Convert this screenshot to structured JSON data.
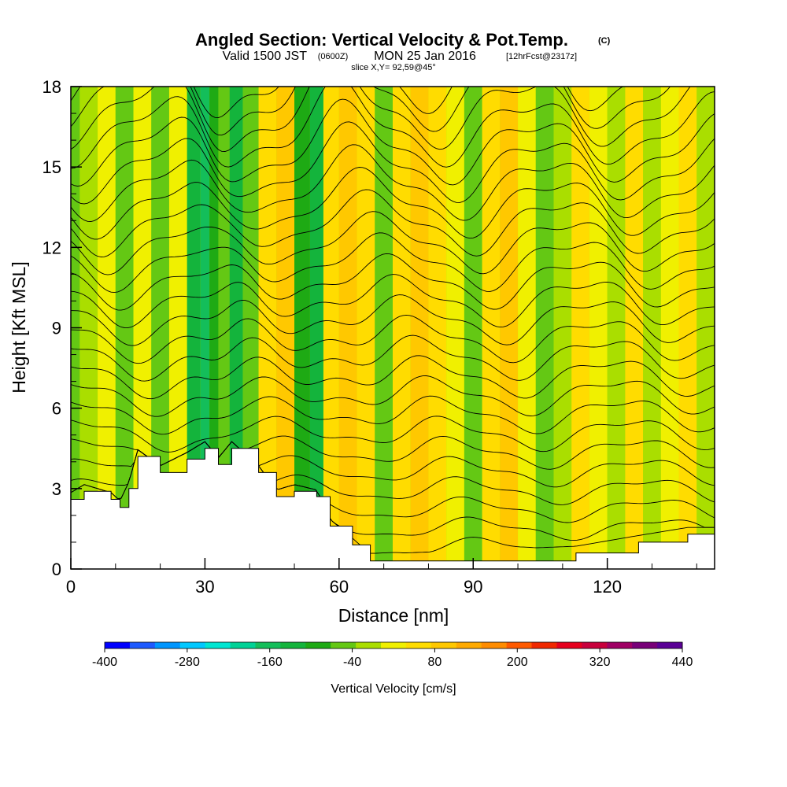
{
  "title": {
    "main": "Angled Section: Vertical Velocity & Pot.Temp.",
    "main_units": "(C)",
    "valid_prefix": "Valid 1500 JST",
    "valid_utc": "(0600Z)",
    "valid_date": "MON 25 Jan 2016",
    "forecast": "[12hrFcst@2317z]",
    "slice": "slice X,Y= 92,59@45°"
  },
  "colorbar": {
    "label": "Vertical Velocity [cm/s]",
    "colors": [
      "#0000ff",
      "#1e5aff",
      "#0096ff",
      "#00c8ff",
      "#00e6d2",
      "#00d296",
      "#14be5a",
      "#14b43c",
      "#1eaa14",
      "#64c814",
      "#aade00",
      "#f0f000",
      "#ffdc00",
      "#ffc800",
      "#ffaa00",
      "#ff8c00",
      "#ff5a00",
      "#f02800",
      "#e6001e",
      "#c8003c",
      "#a00064",
      "#780078",
      "#5a0096"
    ],
    "tick_labels": [
      "-400",
      "-280",
      "-160",
      "-40",
      "80",
      "200",
      "320",
      "440"
    ],
    "tick_values": [
      -400,
      -280,
      -160,
      -40,
      80,
      200,
      320,
      440
    ],
    "vmin": -400,
    "vmax": 440
  },
  "chart_data": {
    "type": "heatmap",
    "title": "Angled Section: Vertical Velocity & Pot.Temp.",
    "xlabel": "Distance [nm]",
    "ylabel": "Height [Kft MSL]",
    "xlim": [
      0,
      144
    ],
    "ylim": [
      0,
      18
    ],
    "x_ticks": [
      0,
      30,
      60,
      90,
      120
    ],
    "y_ticks": [
      0,
      3,
      6,
      9,
      12,
      15,
      18
    ],
    "field_fill": "Vertical Velocity [cm/s]",
    "field_contours": "Potential Temperature (C)",
    "columns": [
      {
        "x": 0,
        "w": -40
      },
      {
        "x": 4,
        "w": -20
      },
      {
        "x": 8,
        "w": 10
      },
      {
        "x": 12,
        "w": -40
      },
      {
        "x": 16,
        "w": 20
      },
      {
        "x": 20,
        "w": -60
      },
      {
        "x": 24,
        "w": 20
      },
      {
        "x": 28,
        "w": -140
      },
      {
        "x": 30,
        "w": -160
      },
      {
        "x": 32,
        "w": -100
      },
      {
        "x": 34,
        "w": -40
      },
      {
        "x": 37,
        "w": -140
      },
      {
        "x": 40,
        "w": -40
      },
      {
        "x": 44,
        "w": 40
      },
      {
        "x": 48,
        "w": 100
      },
      {
        "x": 52,
        "w": -80
      },
      {
        "x": 55,
        "w": -120
      },
      {
        "x": 58,
        "w": 60
      },
      {
        "x": 62,
        "w": 80
      },
      {
        "x": 66,
        "w": 40
      },
      {
        "x": 70,
        "w": -40
      },
      {
        "x": 74,
        "w": 60
      },
      {
        "x": 78,
        "w": 100
      },
      {
        "x": 82,
        "w": 60
      },
      {
        "x": 86,
        "w": 20
      },
      {
        "x": 90,
        "w": -60
      },
      {
        "x": 94,
        "w": 40
      },
      {
        "x": 98,
        "w": 80
      },
      {
        "x": 102,
        "w": 20
      },
      {
        "x": 106,
        "w": -40
      },
      {
        "x": 110,
        "w": -20
      },
      {
        "x": 114,
        "w": 40
      },
      {
        "x": 118,
        "w": 20
      },
      {
        "x": 122,
        "w": -20
      },
      {
        "x": 126,
        "w": 40
      },
      {
        "x": 130,
        "w": -20
      },
      {
        "x": 134,
        "w": 20
      },
      {
        "x": 138,
        "w": 40
      },
      {
        "x": 142,
        "w": -20
      }
    ],
    "terrain": [
      {
        "x": 0,
        "h": 2.6
      },
      {
        "x": 3,
        "h": 2.9
      },
      {
        "x": 9,
        "h": 2.6
      },
      {
        "x": 11,
        "h": 2.3
      },
      {
        "x": 13,
        "h": 3.0
      },
      {
        "x": 15,
        "h": 4.2
      },
      {
        "x": 20,
        "h": 3.6
      },
      {
        "x": 26,
        "h": 4.1
      },
      {
        "x": 30,
        "h": 4.5
      },
      {
        "x": 33,
        "h": 3.9
      },
      {
        "x": 36,
        "h": 4.5
      },
      {
        "x": 42,
        "h": 3.6
      },
      {
        "x": 46,
        "h": 2.7
      },
      {
        "x": 50,
        "h": 2.9
      },
      {
        "x": 55,
        "h": 2.7
      },
      {
        "x": 58,
        "h": 1.6
      },
      {
        "x": 63,
        "h": 0.9
      },
      {
        "x": 67,
        "h": 0.3
      },
      {
        "x": 113,
        "h": 0.6
      },
      {
        "x": 127,
        "h": 1.0
      },
      {
        "x": 138,
        "h": 1.3
      },
      {
        "x": 144,
        "h": 1.3
      }
    ],
    "theta_levels": [
      -4,
      -3,
      -2,
      -1,
      0,
      1,
      2,
      3,
      4,
      5,
      6,
      7,
      8,
      9,
      10,
      11,
      12,
      13,
      14,
      15,
      16,
      17,
      18,
      19,
      20,
      21
    ]
  }
}
